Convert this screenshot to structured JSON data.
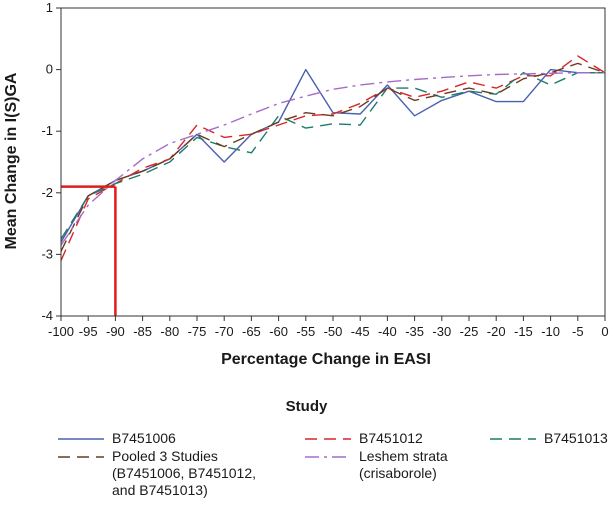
{
  "chart_data": {
    "type": "line",
    "title": "",
    "xlabel": "Percentage Change in EASI",
    "ylabel": "Mean Change in I(S)GA",
    "xlim": [
      -100,
      0
    ],
    "ylim": [
      -4,
      1
    ],
    "xticks": [
      -100,
      -95,
      -90,
      -85,
      -80,
      -75,
      -70,
      -65,
      -60,
      -55,
      -50,
      -45,
      -40,
      -35,
      -30,
      -25,
      -20,
      -15,
      -10,
      -5,
      0
    ],
    "yticks": [
      -4,
      -3,
      -2,
      -1,
      0,
      1
    ],
    "grid": false,
    "reference_lines": [
      {
        "name": "threshold",
        "color": "#e31a1c",
        "x": -90,
        "y": -1.9
      }
    ],
    "series": [
      {
        "name": "B7451006",
        "color": "#4a5fb0",
        "dash": "solid",
        "x": [
          -100,
          -95,
          -90,
          -85,
          -80,
          -75,
          -70,
          -65,
          -60,
          -55,
          -50,
          -45,
          -40,
          -35,
          -30,
          -25,
          -20,
          -15,
          -10,
          -5,
          0
        ],
        "y": [
          -2.8,
          -2.05,
          -1.8,
          -1.65,
          -1.45,
          -1.05,
          -1.5,
          -1.05,
          -0.85,
          0.0,
          -0.7,
          -0.72,
          -0.25,
          -0.75,
          -0.5,
          -0.35,
          -0.52,
          -0.52,
          0.0,
          -0.05,
          -0.05
        ]
      },
      {
        "name": "B7451012",
        "color": "#d62728",
        "dash": "12,7",
        "x": [
          -100,
          -95,
          -90,
          -85,
          -80,
          -75,
          -70,
          -65,
          -60,
          -55,
          -50,
          -45,
          -40,
          -35,
          -30,
          -25,
          -20,
          -15,
          -10,
          -5,
          0
        ],
        "y": [
          -3.1,
          -2.1,
          -1.85,
          -1.6,
          -1.45,
          -0.9,
          -1.1,
          -1.05,
          -0.9,
          -0.75,
          -0.72,
          -0.55,
          -0.3,
          -0.45,
          -0.35,
          -0.2,
          -0.3,
          -0.1,
          -0.1,
          0.22,
          -0.05
        ]
      },
      {
        "name": "B7451013",
        "color": "#1f7a6a",
        "dash": "12,7",
        "x": [
          -100,
          -95,
          -90,
          -85,
          -80,
          -75,
          -70,
          -65,
          -60,
          -55,
          -50,
          -45,
          -40,
          -35,
          -30,
          -25,
          -20,
          -15,
          -10,
          -5,
          0
        ],
        "y": [
          -2.75,
          -2.05,
          -1.85,
          -1.7,
          -1.5,
          -1.1,
          -1.25,
          -1.35,
          -0.75,
          -0.95,
          -0.88,
          -0.9,
          -0.3,
          -0.3,
          -0.45,
          -0.35,
          -0.4,
          -0.05,
          -0.25,
          -0.05,
          -0.05
        ]
      },
      {
        "name": "Pooled 3 Studies\n(B7451006, B7451012,\nand B7451013)",
        "color": "#6b3a1f",
        "dash": "12,7",
        "x": [
          -100,
          -95,
          -90,
          -85,
          -80,
          -75,
          -70,
          -65,
          -60,
          -55,
          -50,
          -45,
          -40,
          -35,
          -30,
          -25,
          -20,
          -15,
          -10,
          -5,
          0
        ],
        "y": [
          -2.95,
          -2.05,
          -1.8,
          -1.65,
          -1.45,
          -1.05,
          -1.25,
          -1.05,
          -0.85,
          -0.7,
          -0.75,
          -0.6,
          -0.3,
          -0.5,
          -0.4,
          -0.3,
          -0.4,
          -0.15,
          -0.05,
          0.1,
          -0.05
        ]
      },
      {
        "name": "Leshem strata\n(crisaborole)",
        "color": "#a66bc9",
        "dash": "14,5,3,5",
        "x": [
          -100,
          -95,
          -90,
          -85,
          -80,
          -75,
          -70,
          -65,
          -60,
          -55,
          -50,
          -45,
          -40,
          -35,
          -30,
          -25,
          -20,
          -15,
          -10,
          -5,
          0
        ],
        "y": [
          -2.85,
          -2.2,
          -1.8,
          -1.45,
          -1.2,
          -1.05,
          -0.9,
          -0.72,
          -0.55,
          -0.43,
          -0.32,
          -0.25,
          -0.2,
          -0.16,
          -0.13,
          -0.1,
          -0.08,
          -0.07,
          -0.06,
          -0.05,
          -0.05
        ]
      }
    ],
    "legend_title": "Study",
    "legend_position": "bottom"
  }
}
